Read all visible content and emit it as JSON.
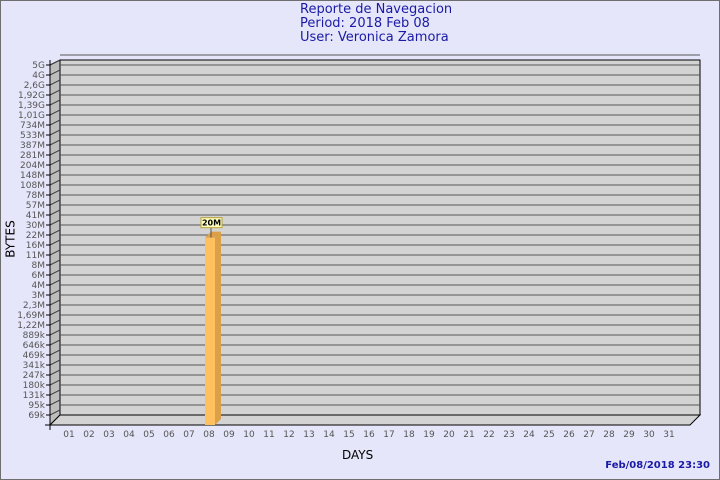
{
  "header": {
    "title": "Reporte de Navegacion",
    "period": "Period: 2018 Feb 08",
    "user": "User: Veronica Zamora"
  },
  "timestamp": "Feb/08/2018 23:30",
  "chart_data": {
    "type": "bar",
    "title": "Reporte de Navegacion",
    "xlabel": "DAYS",
    "ylabel": "BYTES",
    "yscale": "log",
    "grid": true,
    "y_ticks": [
      "5G",
      "4G",
      "2,6G",
      "1,92G",
      "1,39G",
      "1,01G",
      "734M",
      "533M",
      "387M",
      "281M",
      "204M",
      "148M",
      "108M",
      "78M",
      "57M",
      "41M",
      "30M",
      "22M",
      "16M",
      "11M",
      "8M",
      "6M",
      "4M",
      "3M",
      "2,3M",
      "1,69M",
      "1,22M",
      "889k",
      "646k",
      "469k",
      "341k",
      "247k",
      "180k",
      "131k",
      "95k",
      "69k"
    ],
    "categories": [
      "01",
      "02",
      "03",
      "04",
      "05",
      "06",
      "07",
      "08",
      "09",
      "10",
      "11",
      "12",
      "13",
      "14",
      "15",
      "16",
      "17",
      "18",
      "19",
      "20",
      "21",
      "22",
      "23",
      "24",
      "25",
      "26",
      "27",
      "28",
      "29",
      "30",
      "31"
    ],
    "values": [
      0,
      0,
      0,
      0,
      0,
      0,
      0,
      20000000,
      0,
      0,
      0,
      0,
      0,
      0,
      0,
      0,
      0,
      0,
      0,
      0,
      0,
      0,
      0,
      0,
      0,
      0,
      0,
      0,
      0,
      0,
      0
    ],
    "data_labels": {
      "08": "20M"
    },
    "colors": {
      "bar": "#ffc060",
      "bar_side": "#dca048",
      "plot_bg": "#d3d3d3",
      "label_bg": "#ffffc0"
    }
  }
}
